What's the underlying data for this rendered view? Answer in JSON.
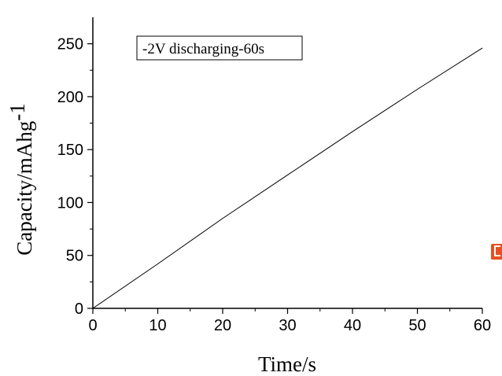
{
  "chart_data": {
    "type": "line",
    "legend_text": "-2V discharging-60s",
    "legend_position": "top-left",
    "xlabel": "Time/s",
    "ylabel": "Capacity/mAhg",
    "ylabel_superscript": "-1",
    "xlim": [
      0,
      60
    ],
    "ylim": [
      0,
      275
    ],
    "x_ticks": [
      0,
      10,
      20,
      30,
      40,
      50,
      60
    ],
    "y_ticks": [
      0,
      50,
      100,
      150,
      200,
      250
    ],
    "grid": false,
    "series": [
      {
        "color": "#000000",
        "x": [
          0,
          10,
          20,
          30,
          40,
          50,
          60
        ],
        "y": [
          0,
          42,
          85,
          126,
          167,
          207,
          246
        ]
      }
    ]
  },
  "badge": {
    "icon": "orange-badge-icon"
  }
}
